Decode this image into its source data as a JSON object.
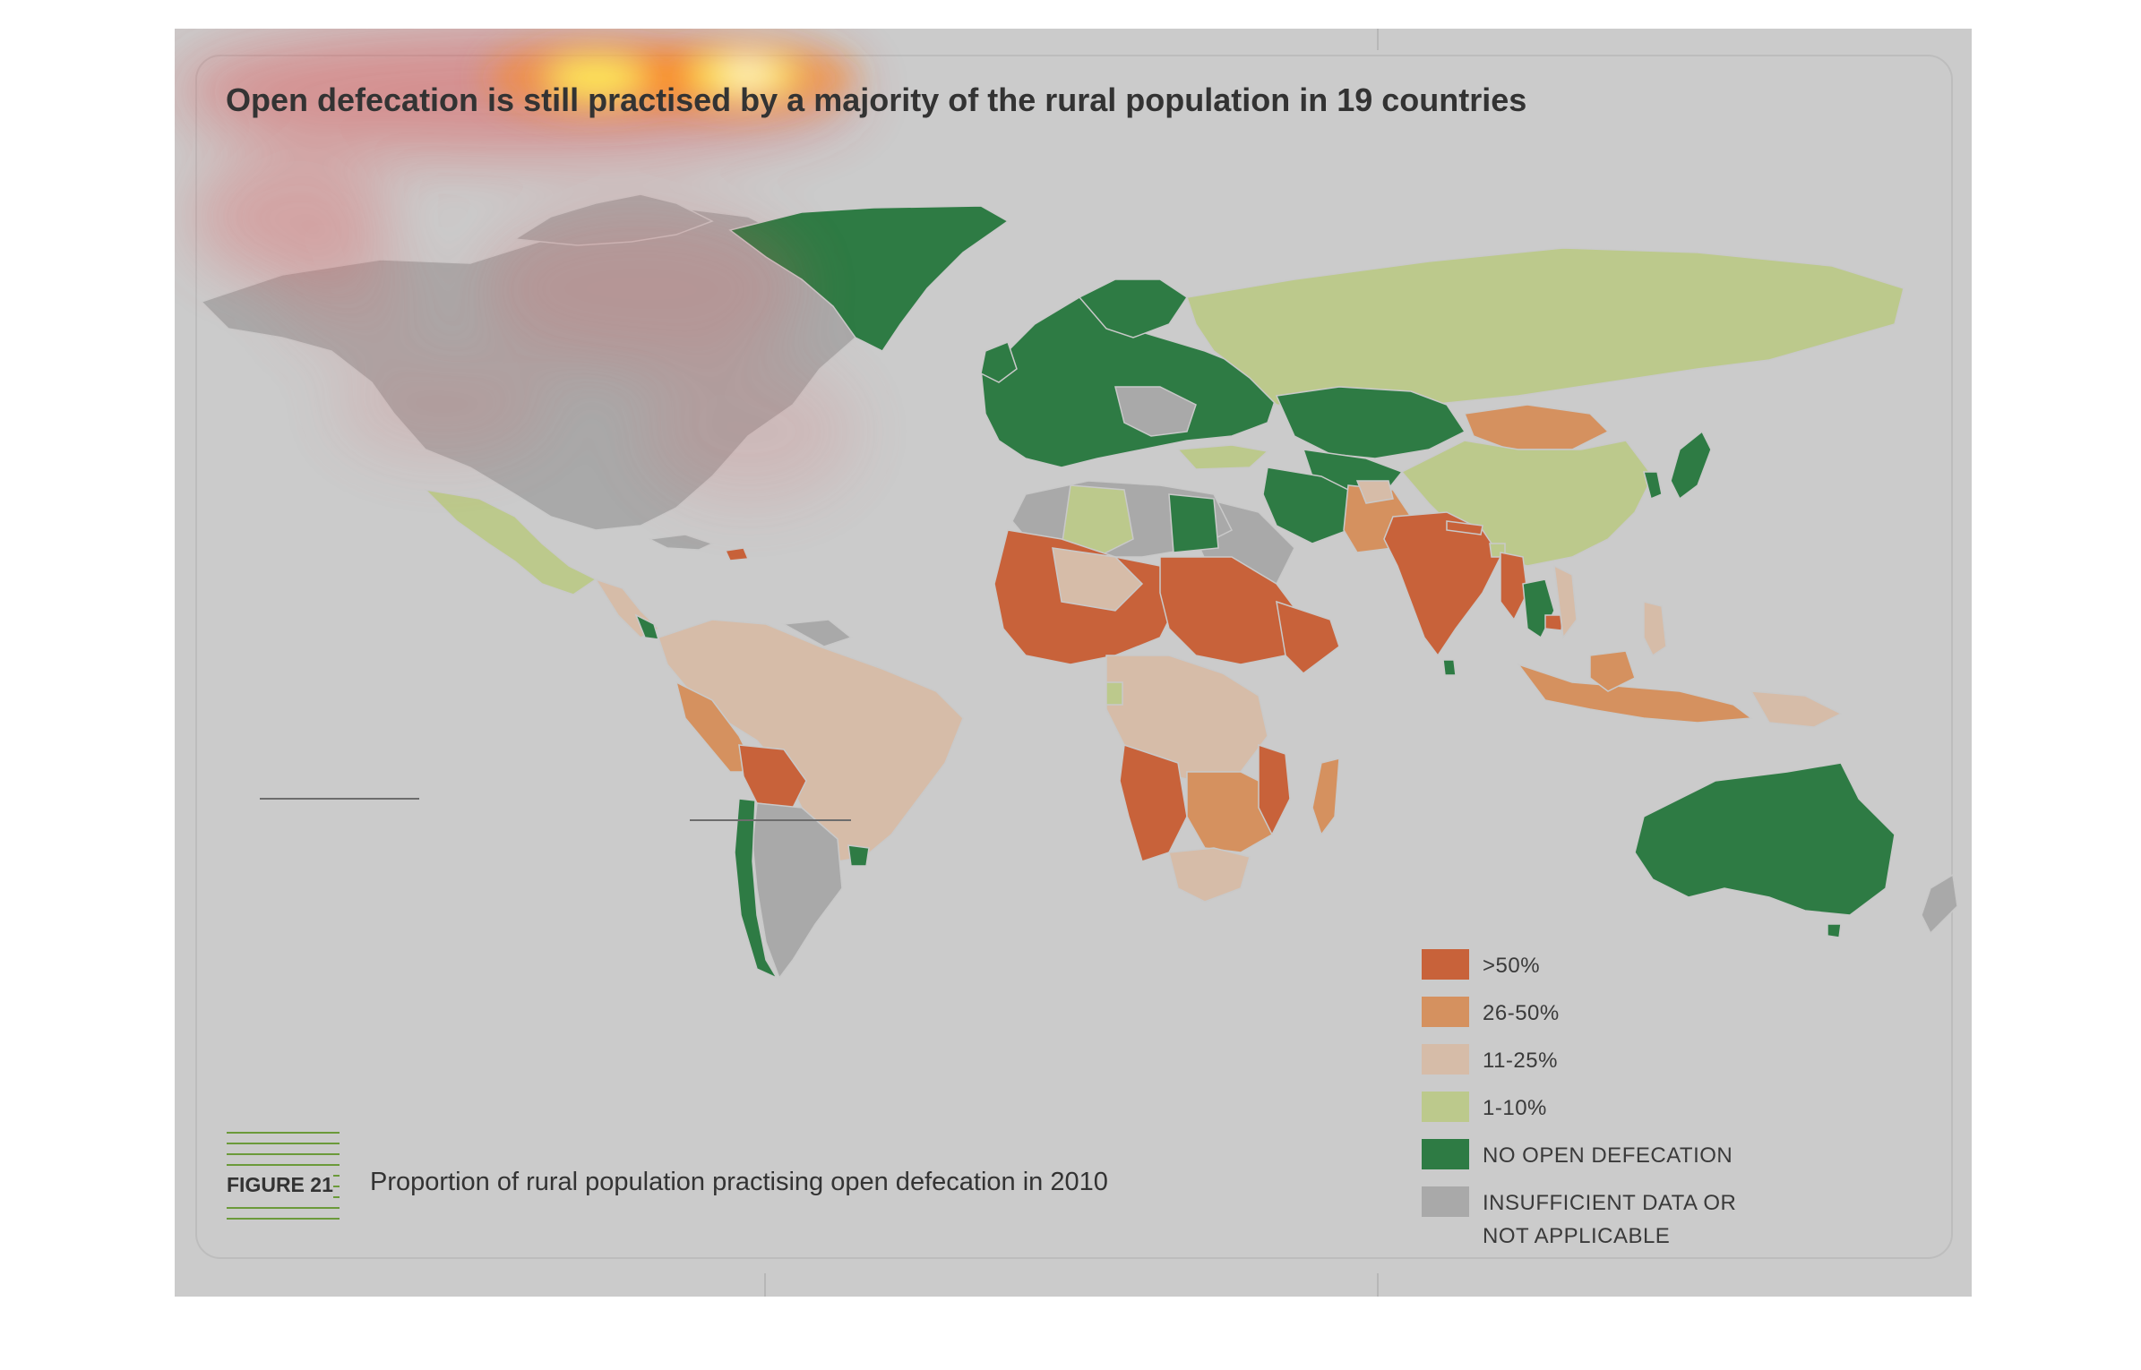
{
  "title": "Open defecation is still practised by a majority of the rural population in 19 countries",
  "figure": {
    "label": "FIGURE 21",
    "caption": "Proportion of rural population practising open defecation in 2010"
  },
  "legend": {
    "items": [
      {
        "label": ">50%",
        "color": "#c8623a"
      },
      {
        "label": "26-50%",
        "color": "#d5915f"
      },
      {
        "label": "11-25%",
        "color": "#d6bca8"
      },
      {
        "label": "1-10%",
        "color": "#bcc98c"
      },
      {
        "label": "NO OPEN DEFECATION",
        "color": "#2e7b44"
      },
      {
        "label": "INSUFFICIENT DATA OR NOT APPLICABLE",
        "color": "#a9a9a9"
      }
    ]
  },
  "colors": {
    "background": "#cbcbcb",
    "heatmap_overlay": "red-yellow attention heatmap over title"
  }
}
